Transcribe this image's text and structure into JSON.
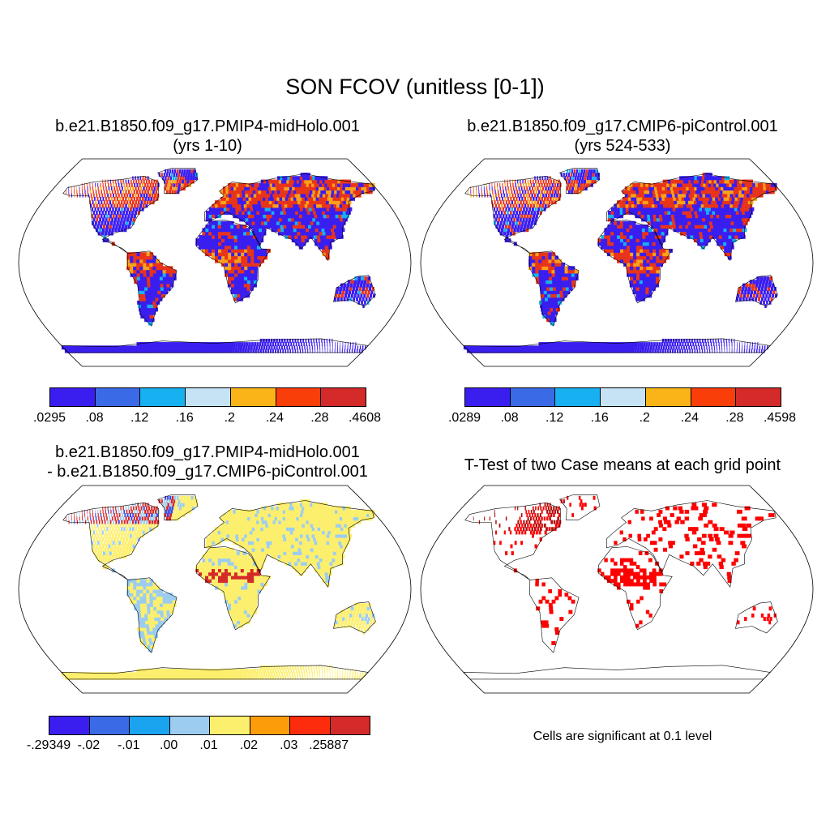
{
  "main_title": "SON FCOV (unitless [0-1])",
  "panels": {
    "p1": {
      "title_line1": "b.e21.B1850.f09_g17.PMIP4-midHolo.001",
      "title_line2": "(yrs 1-10)"
    },
    "p2": {
      "title_line1": "b.e21.B1850.f09_g17.CMIP6-piControl.001",
      "title_line2": "(yrs 524-533)"
    },
    "p3": {
      "title_line1": "b.e21.B1850.f09_g17.PMIP4-midHolo.001",
      "title_line2": "- b.e21.B1850.f09_g17.CMIP6-piControl.001"
    },
    "p4": {
      "title_line1": "T-Test of two Case means at each grid point",
      "note": "Cells are significant at 0.1 level"
    }
  },
  "colorbars": {
    "cb1": {
      "colors": [
        "#3a1ef0",
        "#3a6ae6",
        "#17b0f0",
        "#c5e3f4",
        "#fbb417",
        "#fa3e0a",
        "#d42a2a"
      ],
      "labels": [
        ".0295",
        ".08",
        ".12",
        ".16",
        ".2",
        ".24",
        ".28",
        ".4608"
      ]
    },
    "cb2": {
      "colors": [
        "#3a1ef0",
        "#3a6ae6",
        "#17b0f0",
        "#c5e3f4",
        "#fbb417",
        "#fa3e0a",
        "#d42a2a"
      ],
      "labels": [
        ".0289",
        ".08",
        ".12",
        ".16",
        ".2",
        ".24",
        ".28",
        ".4598"
      ]
    },
    "cb3": {
      "colors": [
        "#3a1ef0",
        "#3a6ae6",
        "#1aa4f0",
        "#9ccdf0",
        "#fdef6e",
        "#fd9c0b",
        "#fc2c0c",
        "#d42a2a"
      ],
      "labels": [
        "-.29349",
        "",
        "-.02",
        "-.01",
        ".00",
        ".01",
        ".02",
        ".03",
        ".25887"
      ]
    }
  },
  "map_colors": {
    "land_blue": "#3a1ef0",
    "land_red": "#e8341a",
    "land_orange": "#f9a11b",
    "land_lightblue": "#17b0f0",
    "diff_yellow": "#fdef6e",
    "diff_lightblue": "#9ccdf0",
    "diff_red": "#d42a2a",
    "diff_blue": "#3a4ae6",
    "sig_red": "#ff0000",
    "sig_dark": "#b01010"
  }
}
